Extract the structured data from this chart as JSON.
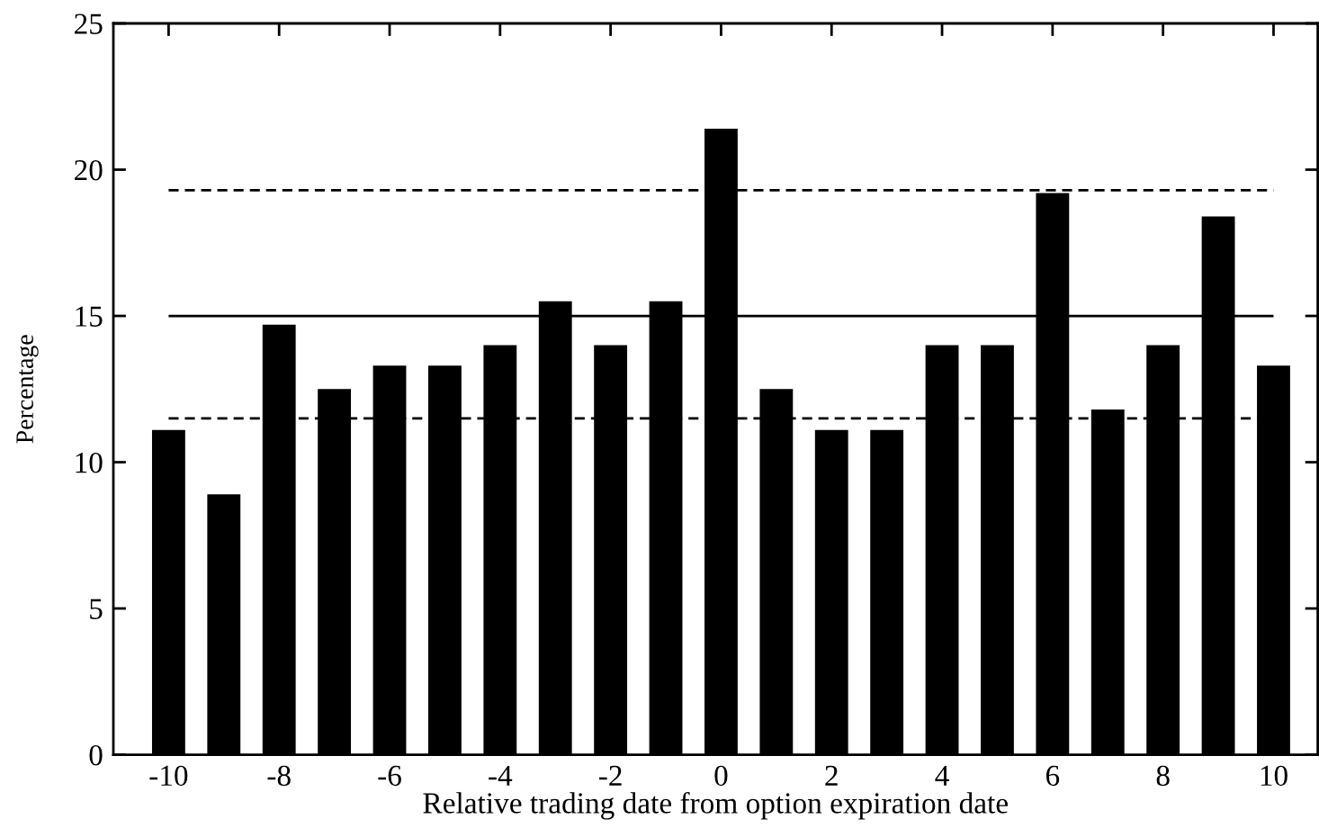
{
  "chart_data": {
    "type": "bar",
    "xlabel": "Relative trading date from option expiration date",
    "ylabel": "Percentage",
    "x": [
      -10,
      -9,
      -8,
      -7,
      -6,
      -5,
      -4,
      -3,
      -2,
      -1,
      0,
      1,
      2,
      3,
      4,
      5,
      6,
      7,
      8,
      9,
      10
    ],
    "values": [
      11.1,
      8.9,
      14.7,
      12.5,
      13.3,
      13.3,
      14.0,
      15.5,
      14.0,
      15.5,
      21.4,
      12.5,
      11.1,
      11.1,
      14.0,
      14.0,
      19.2,
      11.8,
      14.0,
      18.4,
      13.3
    ],
    "color": "#000000",
    "xlim": [
      -11,
      10.8
    ],
    "xticks": [
      -10,
      -8,
      -6,
      -4,
      -2,
      0,
      2,
      4,
      6,
      8,
      10
    ],
    "ylim": [
      0,
      25
    ],
    "yticks": [
      0,
      5,
      10,
      15,
      20,
      25
    ],
    "ref_lines": [
      {
        "axis": "y",
        "value": 19.3,
        "color": "#000000",
        "line_style": "dashed"
      },
      {
        "axis": "y",
        "value": 15.0,
        "color": "#000000",
        "line_style": "solid"
      },
      {
        "axis": "y",
        "value": 11.5,
        "color": "#000000",
        "line_style": "dashed"
      }
    ]
  }
}
